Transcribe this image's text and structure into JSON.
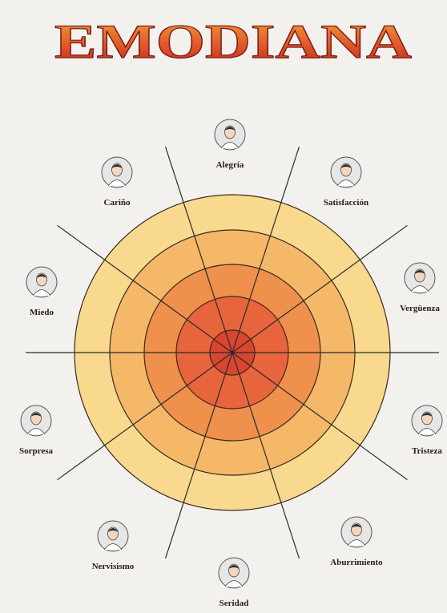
{
  "title": "EMODIANA",
  "emotions": [
    "Alegría",
    "Satisfacción",
    "Vergüenza",
    "Tristeza",
    "Aburrimiento",
    "Seridad",
    "Nervisismo",
    "Sorpresa",
    "Miedo",
    "Cariño"
  ]
}
